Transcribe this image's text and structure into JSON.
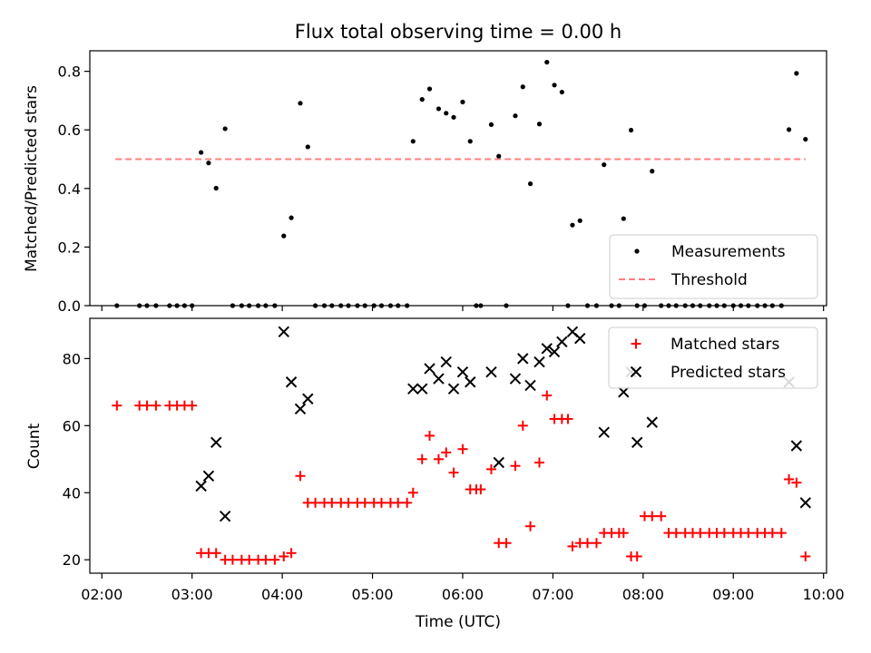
{
  "title": "Flux total observing time = 0.00 h",
  "chart_data": [
    {
      "type": "scatter",
      "ylabel": "Matched/Predicted stars",
      "xlabel": "",
      "xlim": [
        "02:00",
        "10:00"
      ],
      "ylim": [
        0,
        0.87
      ],
      "yticks": [
        "0.0",
        "0.2",
        "0.4",
        "0.6",
        "0.8"
      ],
      "grid": false,
      "legend_position": "lower right",
      "series": [
        {
          "name": "Measurements",
          "marker": "dot",
          "color": "#000000",
          "points": [
            [
              "02:10",
              0
            ],
            [
              "02:25",
              0
            ],
            [
              "02:30",
              0
            ],
            [
              "02:36",
              0
            ],
            [
              "02:45",
              0
            ],
            [
              "02:50",
              0
            ],
            [
              "02:55",
              0
            ],
            [
              "03:00",
              0
            ],
            [
              "03:06",
              0.523
            ],
            [
              "03:11",
              0.487
            ],
            [
              "03:16",
              0.401
            ],
            [
              "03:22",
              0.604
            ],
            [
              "03:27",
              0
            ],
            [
              "03:33",
              0
            ],
            [
              "03:38",
              0
            ],
            [
              "03:44",
              0
            ],
            [
              "03:49",
              0
            ],
            [
              "03:55",
              0
            ],
            [
              "04:01",
              0.238
            ],
            [
              "04:06",
              0.3
            ],
            [
              "04:12",
              0.691
            ],
            [
              "04:17",
              0.542
            ],
            [
              "04:22",
              0
            ],
            [
              "04:28",
              0
            ],
            [
              "04:33",
              0
            ],
            [
              "04:39",
              0
            ],
            [
              "04:44",
              0
            ],
            [
              "04:50",
              0
            ],
            [
              "04:55",
              0
            ],
            [
              "05:01",
              0
            ],
            [
              "05:06",
              0
            ],
            [
              "05:12",
              0
            ],
            [
              "05:17",
              0
            ],
            [
              "05:23",
              0
            ],
            [
              "05:27",
              0.561
            ],
            [
              "05:33",
              0.704
            ],
            [
              "05:38",
              0.74
            ],
            [
              "05:44",
              0.672
            ],
            [
              "05:49",
              0.657
            ],
            [
              "05:54",
              0.643
            ],
            [
              "06:00",
              0.695
            ],
            [
              "06:05",
              0.561
            ],
            [
              "06:09",
              0
            ],
            [
              "06:12",
              0
            ],
            [
              "06:19",
              0.618
            ],
            [
              "06:24",
              0.51
            ],
            [
              "06:29",
              0
            ],
            [
              "06:35",
              0.648
            ],
            [
              "06:40",
              0.747
            ],
            [
              "06:45",
              0.416
            ],
            [
              "06:51",
              0.62
            ],
            [
              "06:56",
              0.831
            ],
            [
              "07:01",
              0.753
            ],
            [
              "07:06",
              0.729
            ],
            [
              "07:10",
              0
            ],
            [
              "07:13",
              0.275
            ],
            [
              "07:18",
              0.29
            ],
            [
              "07:23",
              0
            ],
            [
              "07:29",
              0
            ],
            [
              "07:34",
              0.481
            ],
            [
              "07:39",
              0
            ],
            [
              "07:44",
              0
            ],
            [
              "07:47",
              0.297
            ],
            [
              "07:52",
              0.599
            ],
            [
              "07:56",
              0
            ],
            [
              "08:01",
              0
            ],
            [
              "08:06",
              0.459
            ],
            [
              "08:12",
              0
            ],
            [
              "08:17",
              0
            ],
            [
              "08:22",
              0
            ],
            [
              "08:28",
              0
            ],
            [
              "08:33",
              0
            ],
            [
              "08:38",
              0
            ],
            [
              "08:44",
              0
            ],
            [
              "08:49",
              0
            ],
            [
              "08:54",
              0
            ],
            [
              "09:00",
              0
            ],
            [
              "09:05",
              0
            ],
            [
              "09:10",
              0
            ],
            [
              "09:16",
              0
            ],
            [
              "09:21",
              0
            ],
            [
              "09:26",
              0
            ],
            [
              "09:32",
              0
            ],
            [
              "09:37",
              0.601
            ],
            [
              "09:42",
              0.793
            ],
            [
              "09:48",
              0.568
            ]
          ]
        },
        {
          "name": "Threshold",
          "type": "line",
          "style": "dashed",
          "color": "#ff7f7f",
          "points": [
            [
              "02:09",
              0.5
            ],
            [
              "09:48",
              0.5
            ]
          ]
        }
      ]
    },
    {
      "type": "scatter",
      "ylabel": "Count",
      "xlabel": "Time (UTC)",
      "xlim": [
        "02:00",
        "10:00"
      ],
      "ylim": [
        16,
        92
      ],
      "yticks": [
        "20",
        "40",
        "60",
        "80"
      ],
      "xticks": [
        "02:00",
        "03:00",
        "04:00",
        "05:00",
        "06:00",
        "07:00",
        "08:00",
        "09:00",
        "10:00"
      ],
      "grid": false,
      "legend_position": "upper right",
      "series": [
        {
          "name": "Matched stars",
          "marker": "plus",
          "color": "#ff0000",
          "points": [
            [
              "02:10",
              66
            ],
            [
              "02:25",
              66
            ],
            [
              "02:30",
              66
            ],
            [
              "02:36",
              66
            ],
            [
              "02:45",
              66
            ],
            [
              "02:50",
              66
            ],
            [
              "02:55",
              66
            ],
            [
              "03:00",
              66
            ],
            [
              "03:06",
              22
            ],
            [
              "03:11",
              22
            ],
            [
              "03:16",
              22
            ],
            [
              "03:22",
              20
            ],
            [
              "03:27",
              20
            ],
            [
              "03:33",
              20
            ],
            [
              "03:38",
              20
            ],
            [
              "03:44",
              20
            ],
            [
              "03:49",
              20
            ],
            [
              "03:55",
              20
            ],
            [
              "04:01",
              21
            ],
            [
              "04:06",
              22
            ],
            [
              "04:12",
              45
            ],
            [
              "04:17",
              37
            ],
            [
              "04:22",
              37
            ],
            [
              "04:28",
              37
            ],
            [
              "04:33",
              37
            ],
            [
              "04:39",
              37
            ],
            [
              "04:44",
              37
            ],
            [
              "04:50",
              37
            ],
            [
              "04:55",
              37
            ],
            [
              "05:01",
              37
            ],
            [
              "05:06",
              37
            ],
            [
              "05:12",
              37
            ],
            [
              "05:17",
              37
            ],
            [
              "05:23",
              37
            ],
            [
              "05:27",
              40
            ],
            [
              "05:33",
              50
            ],
            [
              "05:38",
              57
            ],
            [
              "05:44",
              50
            ],
            [
              "05:49",
              52
            ],
            [
              "05:54",
              46
            ],
            [
              "06:00",
              53
            ],
            [
              "06:05",
              41
            ],
            [
              "06:09",
              41
            ],
            [
              "06:12",
              41
            ],
            [
              "06:19",
              47
            ],
            [
              "06:24",
              25
            ],
            [
              "06:29",
              25
            ],
            [
              "06:35",
              48
            ],
            [
              "06:40",
              60
            ],
            [
              "06:45",
              30
            ],
            [
              "06:51",
              49
            ],
            [
              "06:56",
              69
            ],
            [
              "07:01",
              62
            ],
            [
              "07:06",
              62
            ],
            [
              "07:10",
              62
            ],
            [
              "07:13",
              24
            ],
            [
              "07:18",
              25
            ],
            [
              "07:23",
              25
            ],
            [
              "07:29",
              25
            ],
            [
              "07:34",
              28
            ],
            [
              "07:39",
              28
            ],
            [
              "07:44",
              28
            ],
            [
              "07:47",
              28
            ],
            [
              "07:52",
              21
            ],
            [
              "07:56",
              21
            ],
            [
              "08:01",
              33
            ],
            [
              "08:06",
              33
            ],
            [
              "08:12",
              33
            ],
            [
              "08:17",
              28
            ],
            [
              "08:22",
              28
            ],
            [
              "08:28",
              28
            ],
            [
              "08:33",
              28
            ],
            [
              "08:38",
              28
            ],
            [
              "08:44",
              28
            ],
            [
              "08:49",
              28
            ],
            [
              "08:54",
              28
            ],
            [
              "09:00",
              28
            ],
            [
              "09:05",
              28
            ],
            [
              "09:10",
              28
            ],
            [
              "09:16",
              28
            ],
            [
              "09:21",
              28
            ],
            [
              "09:26",
              28
            ],
            [
              "09:32",
              28
            ],
            [
              "09:37",
              44
            ],
            [
              "09:42",
              43
            ],
            [
              "09:48",
              21
            ]
          ]
        },
        {
          "name": "Predicted stars",
          "marker": "x",
          "color": "#000000",
          "points": [
            [
              "03:06",
              42
            ],
            [
              "03:11",
              45
            ],
            [
              "03:16",
              55
            ],
            [
              "03:22",
              33
            ],
            [
              "04:01",
              88
            ],
            [
              "04:06",
              73
            ],
            [
              "04:12",
              65
            ],
            [
              "04:17",
              68
            ],
            [
              "05:27",
              71
            ],
            [
              "05:33",
              71
            ],
            [
              "05:38",
              77
            ],
            [
              "05:44",
              74
            ],
            [
              "05:49",
              79
            ],
            [
              "05:54",
              71
            ],
            [
              "06:00",
              76
            ],
            [
              "06:05",
              73
            ],
            [
              "06:19",
              76
            ],
            [
              "06:24",
              49
            ],
            [
              "06:35",
              74
            ],
            [
              "06:40",
              80
            ],
            [
              "06:45",
              72
            ],
            [
              "06:51",
              79
            ],
            [
              "06:56",
              83
            ],
            [
              "07:01",
              82
            ],
            [
              "07:06",
              85
            ],
            [
              "07:13",
              88
            ],
            [
              "07:18",
              86
            ],
            [
              "07:34",
              58
            ],
            [
              "07:47",
              70
            ],
            [
              "07:52",
              76
            ],
            [
              "07:56",
              55
            ],
            [
              "08:06",
              61
            ],
            [
              "09:37",
              73
            ],
            [
              "09:42",
              54
            ],
            [
              "09:48",
              37
            ]
          ]
        }
      ]
    }
  ]
}
